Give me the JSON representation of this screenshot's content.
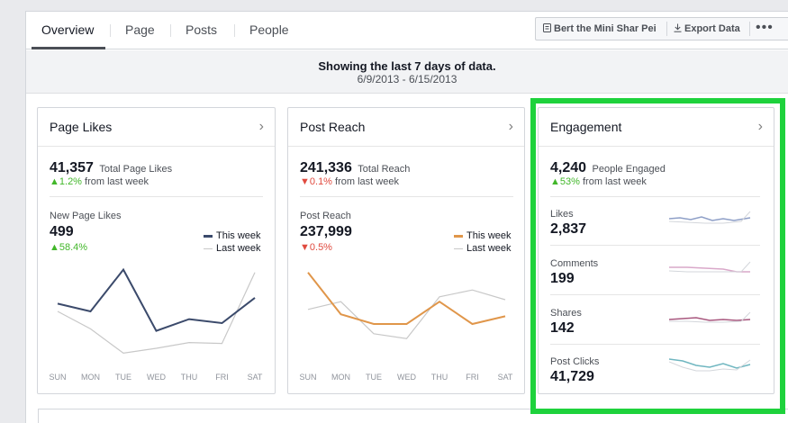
{
  "tabs": [
    {
      "label": "Overview",
      "active": true
    },
    {
      "label": "Page"
    },
    {
      "label": "Posts"
    },
    {
      "label": "People"
    }
  ],
  "actions": {
    "page_name": "Bert the Mini Shar Pei",
    "export": "Export Data",
    "more": "•••"
  },
  "banner": {
    "title": "Showing the last 7 days of data.",
    "range": "6/9/2013 - 6/15/2013"
  },
  "cards": {
    "page_likes": {
      "title": "Page Likes",
      "total": "41,357",
      "total_caption": "Total Page Likes",
      "delta": "1.2%",
      "delta_caption": "from last week",
      "sub_label": "New Page Likes",
      "sub_value": "499",
      "sub_delta": "58.4%",
      "legend_this": "This week",
      "legend_last": "Last week",
      "this_color": "#3b4a6b",
      "last_color": "#c8c8c8"
    },
    "post_reach": {
      "title": "Post Reach",
      "total": "241,336",
      "total_caption": "Total Reach",
      "delta": "0.1%",
      "delta_caption": "from last week",
      "sub_label": "Post Reach",
      "sub_value": "237,999",
      "sub_delta": "0.5%",
      "legend_this": "This week",
      "legend_last": "Last week",
      "this_color": "#e0964a",
      "last_color": "#c8c8c8"
    },
    "engagement": {
      "title": "Engagement",
      "total": "4,240",
      "total_caption": "People Engaged",
      "delta": "53%",
      "delta_caption": "from last week",
      "metrics": [
        {
          "label": "Likes",
          "value": "2,837",
          "color": "#8e9fc7"
        },
        {
          "label": "Comments",
          "value": "199",
          "color": "#d9a8c9"
        },
        {
          "label": "Shares",
          "value": "142",
          "color": "#a8577e"
        },
        {
          "label": "Post Clicks",
          "value": "41,729",
          "color": "#6fb6c0"
        }
      ]
    }
  },
  "chart_data": [
    {
      "type": "line",
      "categories": [
        "SUN",
        "MON",
        "TUE",
        "WED",
        "THU",
        "FRI",
        "SAT"
      ],
      "series": [
        {
          "name": "This week",
          "values": [
            0.58,
            0.5,
            0.93,
            0.3,
            0.42,
            0.38,
            0.64
          ]
        },
        {
          "name": "Last week",
          "values": [
            0.5,
            0.32,
            0.07,
            0.12,
            0.18,
            0.17,
            0.9
          ]
        }
      ]
    },
    {
      "type": "line",
      "categories": [
        "SUN",
        "MON",
        "TUE",
        "WED",
        "THU",
        "FRI",
        "SAT"
      ],
      "series": [
        {
          "name": "This week",
          "values": [
            0.9,
            0.47,
            0.37,
            0.37,
            0.6,
            0.37,
            0.45
          ]
        },
        {
          "name": "Last week",
          "values": [
            0.52,
            0.6,
            0.27,
            0.22,
            0.65,
            0.72,
            0.62
          ]
        }
      ]
    }
  ]
}
